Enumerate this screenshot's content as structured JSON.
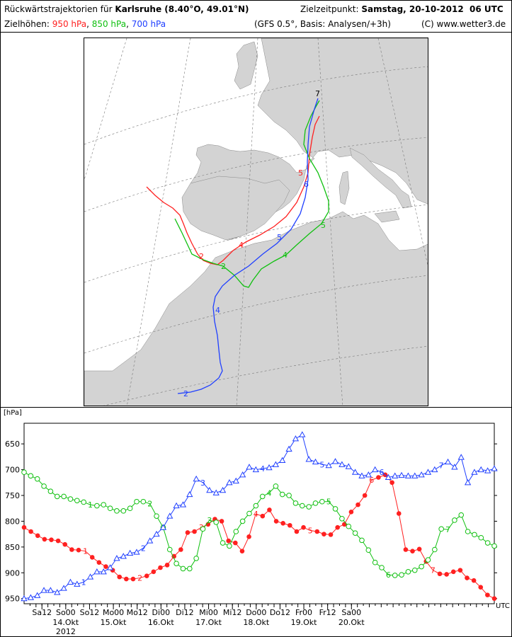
{
  "header": {
    "title_prefix": "Rückwärtstrajektorien für",
    "location": "Karlsruhe (8.40°O, 49.01°N)",
    "target_label": "Zielzeitpunkt:",
    "target_time": "Samstag, 20-10-2012  06 UTC",
    "levels_label": "Zielhöhen:",
    "levels": [
      {
        "label": "950 hPa",
        "color": "#ff2020"
      },
      {
        "label": "850 hPa",
        "color": "#10c010"
      },
      {
        "label": "700 hPa",
        "color": "#2040ff"
      }
    ],
    "model_info": "(GFS 0.5°, Basis: Analysen/+3h)",
    "copyright": "(C) www.wetter3.de"
  },
  "map": {
    "land_color": "#d3d3d3",
    "sea_color": "#ffffff",
    "end_label": "7"
  },
  "chart_data": {
    "type": "line",
    "ylabel": "[hPa]",
    "x_unit": "UTC",
    "ylim": [
      960,
      610
    ],
    "y_reversed": true,
    "yticks": [
      650,
      700,
      750,
      800,
      850,
      900,
      950
    ],
    "xlim": [
      0,
      79
    ],
    "xticks": [
      {
        "x": 3,
        "top": "Sa12",
        "bottom": ""
      },
      {
        "x": 7,
        "top": "So00",
        "bottom": "14.Okt"
      },
      {
        "x": 11,
        "top": "So12",
        "bottom": ""
      },
      {
        "x": 15,
        "top": "Mo00",
        "bottom": "15.Okt"
      },
      {
        "x": 19,
        "top": "Mo12",
        "bottom": ""
      },
      {
        "x": 23,
        "top": "Di00",
        "bottom": "16.Okt"
      },
      {
        "x": 27,
        "top": "Di12",
        "bottom": ""
      },
      {
        "x": 31,
        "top": "Mi00",
        "bottom": "17.Okt"
      },
      {
        "x": 35,
        "top": "Mi12",
        "bottom": ""
      },
      {
        "x": 39,
        "top": "Do00",
        "bottom": "18.Okt"
      },
      {
        "x": 43,
        "top": "Do12",
        "bottom": ""
      },
      {
        "x": 47,
        "top": "Fr00",
        "bottom": "19.Okt"
      },
      {
        "x": 51,
        "top": "Fr12",
        "bottom": ""
      },
      {
        "x": 55,
        "top": "Sa00",
        "bottom": "20.Okt"
      }
    ],
    "year_label": "2012",
    "series": [
      {
        "name": "950 hPa",
        "color": "#ff2020",
        "marker": "dot",
        "values": [
          812,
          820,
          828,
          835,
          836,
          838,
          845,
          855,
          856,
          858,
          870,
          880,
          888,
          895,
          908,
          912,
          912,
          910,
          906,
          898,
          890,
          885,
          868,
          855,
          822,
          820,
          812,
          806,
          796,
          800,
          838,
          842,
          858,
          830,
          786,
          790,
          778,
          800,
          804,
          808,
          820,
          812,
          818,
          820,
          825,
          826,
          812,
          806,
          782,
          768,
          750,
          720,
          715,
          710,
          725,
          785,
          855,
          858,
          854,
          878,
          895,
          902,
          903,
          898,
          895,
          910,
          915,
          928,
          943,
          950
        ],
        "labels": [
          {
            "i": 9,
            "t": "1"
          },
          {
            "i": 17,
            "t": "2"
          },
          {
            "i": 26,
            "t": "3"
          },
          {
            "i": 34,
            "t": "4"
          },
          {
            "i": 42,
            "t": "5"
          },
          {
            "i": 51,
            "t": "6"
          },
          {
            "i": 60,
            "t": "7"
          }
        ]
      },
      {
        "name": "850 hPa",
        "color": "#10c010",
        "marker": "circle",
        "values": [
          705,
          712,
          718,
          732,
          742,
          752,
          752,
          757,
          760,
          763,
          768,
          770,
          768,
          775,
          780,
          780,
          775,
          762,
          762,
          766,
          790,
          812,
          855,
          882,
          892,
          892,
          872,
          815,
          798,
          802,
          842,
          848,
          820,
          800,
          785,
          770,
          752,
          745,
          732,
          748,
          750,
          765,
          770,
          772,
          765,
          762,
          762,
          776,
          795,
          810,
          823,
          837,
          856,
          880,
          890,
          904,
          905,
          904,
          898,
          895,
          888,
          875,
          855,
          815,
          816,
          798,
          788,
          820,
          826,
          832,
          842,
          848
        ],
        "labels": [
          {
            "i": 10,
            "t": "1"
          },
          {
            "i": 19,
            "t": "2"
          },
          {
            "i": 28,
            "t": "3"
          },
          {
            "i": 37,
            "t": "4"
          },
          {
            "i": 46,
            "t": "5"
          },
          {
            "i": 55,
            "t": "6"
          },
          {
            "i": 64,
            "t": "7"
          }
        ]
      },
      {
        "name": "700 hPa",
        "color": "#2040ff",
        "marker": "triangle",
        "values": [
          950,
          948,
          944,
          934,
          934,
          938,
          930,
          918,
          922,
          918,
          908,
          898,
          898,
          890,
          872,
          868,
          862,
          860,
          852,
          838,
          825,
          812,
          790,
          770,
          768,
          748,
          718,
          725,
          740,
          745,
          740,
          725,
          722,
          710,
          695,
          700,
          698,
          696,
          690,
          682,
          660,
          640,
          632,
          680,
          685,
          690,
          692,
          684,
          690,
          694,
          705,
          712,
          710,
          700,
          705,
          715,
          712,
          711,
          712,
          712,
          710,
          705,
          700,
          692,
          685,
          695,
          676,
          725,
          705,
          700,
          702,
          698
        ],
        "labels": [
          {
            "i": 9,
            "t": "1"
          },
          {
            "i": 18,
            "t": "2"
          },
          {
            "i": 27,
            "t": "3"
          },
          {
            "i": 36,
            "t": "4"
          },
          {
            "i": 45,
            "t": "5"
          },
          {
            "i": 54,
            "t": "6"
          },
          {
            "i": 63,
            "t": "7"
          }
        ]
      }
    ]
  }
}
